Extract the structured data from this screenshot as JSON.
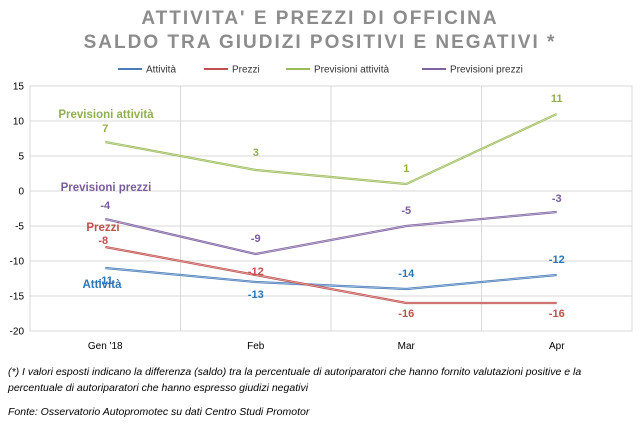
{
  "header": {
    "title_line1": "ATTIVITA' E PREZZI DI OFFICINA",
    "title_line2": "SALDO TRA GIUDIZI POSITIVI E NEGATIVI *"
  },
  "chart_data": {
    "type": "line",
    "categories": [
      "Gen '18",
      "Feb",
      "Mar",
      "Apr"
    ],
    "ylim": [
      -20,
      15
    ],
    "yticks": [
      15,
      10,
      5,
      0,
      -5,
      -10,
      -15,
      -20
    ],
    "grid": true,
    "legend_position": "top",
    "series": [
      {
        "name": "Attività",
        "values": [
          -11,
          -13,
          -14,
          -12
        ],
        "color": "#4a7ebb",
        "label_color": "#2e75b6",
        "labels": [
          "-11",
          "-13",
          "-14",
          "-12"
        ]
      },
      {
        "name": "Prezzi",
        "values": [
          -8,
          -12,
          -16,
          -16
        ],
        "color": "#c0504d",
        "label_color": "#c0504d",
        "labels": [
          "-8",
          "-12",
          "-16",
          "-16"
        ]
      },
      {
        "name": "Previsioni attività",
        "values": [
          7,
          3,
          1,
          11
        ],
        "color": "#9bbb59",
        "label_color": "#8fb04f",
        "labels": [
          "7",
          "3",
          "1",
          "11"
        ]
      },
      {
        "name": "Previsioni prezzi",
        "values": [
          -4,
          -9,
          -5,
          -3
        ],
        "color": "#8064a2",
        "label_color": "#7a5c9e",
        "labels": [
          "-4",
          "-9",
          "-5",
          "-3"
        ]
      }
    ],
    "series_annotations": [
      "Attività",
      "Prezzi",
      "Previsioni attività",
      "Previsioni prezzi"
    ]
  },
  "footnotes": {
    "note": "(*) I valori esposti indicano la differenza (saldo) tra la percentuale di autoriparatori che hanno fornito valutazioni positive e la percentuale di autoriparatori che hanno espresso giudizi negativi",
    "source": "Fonte: Osservatorio Autopromotec su dati Centro Studi Promotor"
  }
}
